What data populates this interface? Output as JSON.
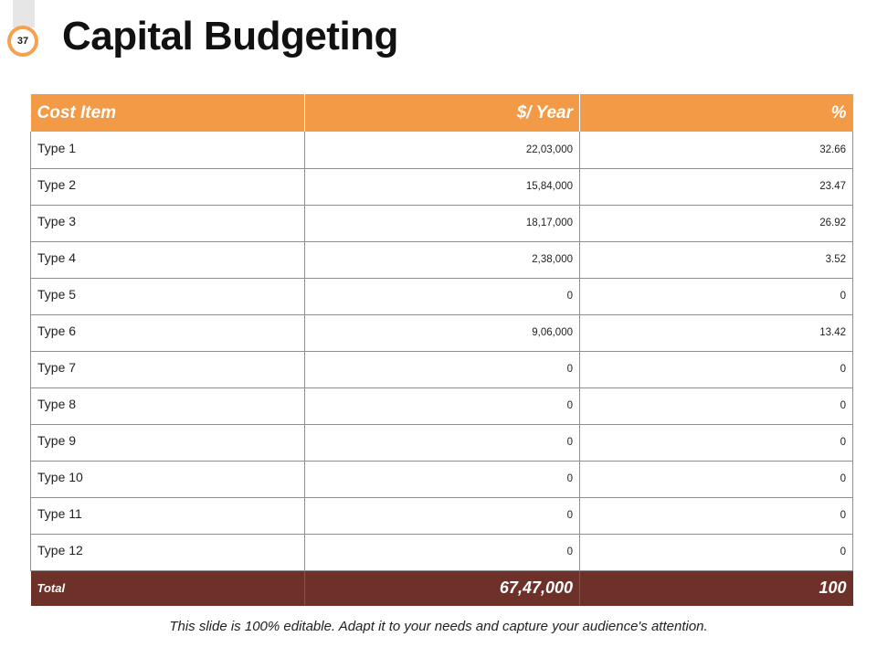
{
  "page_number": "37",
  "title": "Capital Budgeting",
  "table": {
    "headers": [
      "Cost Item",
      "$/ Year",
      "%"
    ],
    "rows": [
      [
        "Type 1",
        "22,03,000",
        "32.66"
      ],
      [
        "Type 2",
        "15,84,000",
        "23.47"
      ],
      [
        "Type 3",
        "18,17,000",
        "26.92"
      ],
      [
        "Type 4",
        "2,38,000",
        "3.52"
      ],
      [
        "Type 5",
        "0",
        "0"
      ],
      [
        "Type 6",
        "9,06,000",
        "13.42"
      ],
      [
        "Type 7",
        "0",
        "0"
      ],
      [
        "Type 8",
        "0",
        "0"
      ],
      [
        "Type 9",
        "0",
        "0"
      ],
      [
        "Type 10",
        "0",
        "0"
      ],
      [
        "Type 11",
        "0",
        "0"
      ],
      [
        "Type 12",
        "0",
        "0"
      ]
    ],
    "total": [
      "Total",
      "67,47,000",
      "100"
    ]
  },
  "footer": "This slide is 100% editable. Adapt it to your needs and capture your audience's attention.",
  "colors": {
    "header_bg": "#f39a47",
    "total_bg": "#6d3129",
    "badge_ring": "#f5a14d"
  }
}
